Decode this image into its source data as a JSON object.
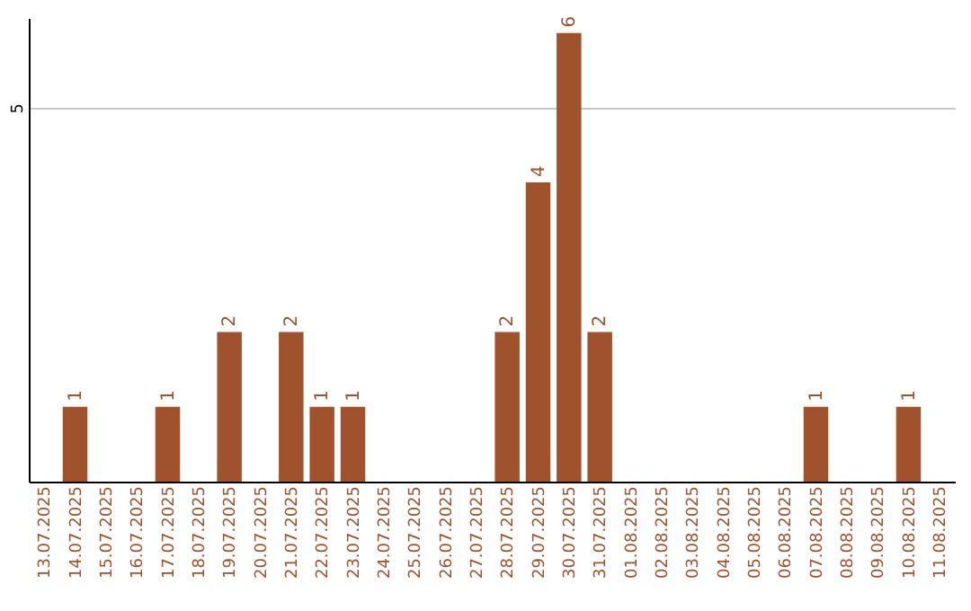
{
  "chart_data": {
    "type": "bar",
    "categories": [
      "13.07.2025",
      "14.07.2025",
      "15.07.2025",
      "16.07.2025",
      "17.07.2025",
      "18.07.2025",
      "19.07.2025",
      "20.07.2025",
      "21.07.2025",
      "22.07.2025",
      "23.07.2025",
      "24.07.2025",
      "25.07.2025",
      "26.07.2025",
      "27.07.2025",
      "28.07.2025",
      "29.07.2025",
      "30.07.2025",
      "31.07.2025",
      "01.08.2025",
      "02.08.2025",
      "03.08.2025",
      "04.08.2025",
      "05.08.2025",
      "06.08.2025",
      "07.08.2025",
      "08.08.2025",
      "09.08.2025",
      "10.08.2025",
      "11.08.2025"
    ],
    "values": [
      0,
      1,
      0,
      0,
      1,
      0,
      2,
      0,
      2,
      1,
      1,
      0,
      0,
      0,
      0,
      2,
      4,
      6,
      2,
      0,
      0,
      0,
      0,
      0,
      0,
      1,
      0,
      0,
      1,
      0
    ],
    "value_labels": [
      null,
      "1",
      null,
      null,
      "1",
      null,
      "2",
      null,
      "2",
      "1",
      "1",
      null,
      null,
      null,
      null,
      "2",
      "4",
      "6",
      "2",
      null,
      null,
      null,
      null,
      null,
      null,
      "1",
      null,
      null,
      "1",
      null
    ],
    "color": "#a0522d",
    "ylim": [
      0,
      6.2
    ],
    "yticks": [
      5
    ],
    "grid": "y"
  }
}
